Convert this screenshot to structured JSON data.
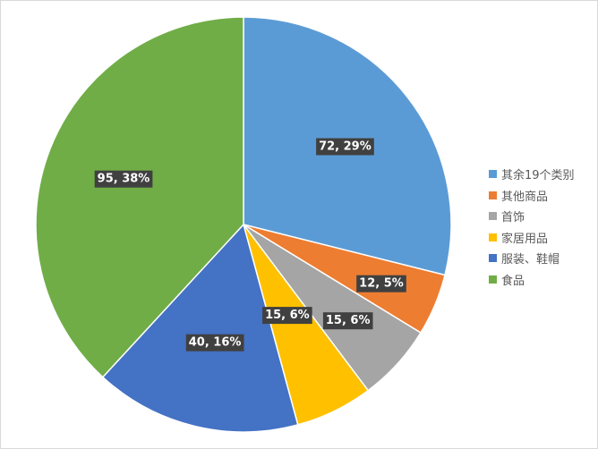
{
  "chart_data": {
    "type": "pie",
    "title": "",
    "categories": [
      "其余19个类别",
      "其他商品",
      "首饰",
      "家居用品",
      "服装、鞋帽",
      "食品"
    ],
    "values": [
      72,
      12,
      15,
      15,
      40,
      95
    ],
    "data_labels": [
      "72, 29%",
      "12, 5%",
      "15, 6%",
      "15, 6%",
      "40, 16%",
      "95, 38%"
    ],
    "colors": [
      "#5b9bd5",
      "#ed7d31",
      "#a5a5a5",
      "#ffc000",
      "#4472c4",
      "#70ad47"
    ],
    "start_angle_deg": 0,
    "direction": "clockwise",
    "legend_position": "right"
  }
}
